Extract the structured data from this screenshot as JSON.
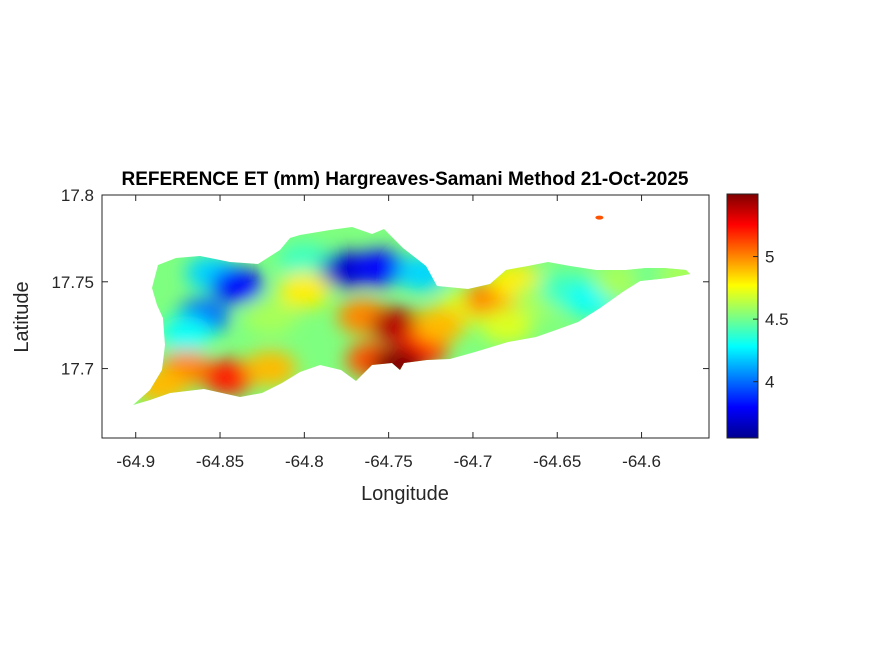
{
  "chart_data": {
    "type": "heatmap",
    "title": "REFERENCE ET (mm) Hargreaves-Samani Method  21-Oct-2025",
    "xlabel": "Longitude",
    "ylabel": "Latitude",
    "xlim": [
      -64.92,
      -64.56
    ],
    "ylim": [
      17.66,
      17.8
    ],
    "xticks": [
      -64.9,
      -64.85,
      -64.8,
      -64.75,
      -64.7,
      -64.65,
      -64.6
    ],
    "xtick_labels": [
      "-64.9",
      "-64.85",
      "-64.8",
      "-64.75",
      "-64.7",
      "-64.65",
      "-64.6"
    ],
    "yticks": [
      17.7,
      17.75,
      17.8
    ],
    "ytick_labels": [
      "17.7",
      "17.75",
      "17.8"
    ],
    "colorbar": {
      "colormap": "jet",
      "range": [
        3.55,
        5.5
      ],
      "ticks": [
        4,
        4.5,
        5
      ],
      "tick_labels": [
        "4",
        "4.5",
        "5"
      ]
    },
    "grid": false,
    "regions": [
      {
        "lon": -64.855,
        "lat": 17.755,
        "value": 4.2
      },
      {
        "lon": -64.84,
        "lat": 17.748,
        "value": 3.8
      },
      {
        "lon": -64.86,
        "lat": 17.73,
        "value": 4.0
      },
      {
        "lon": -64.87,
        "lat": 17.72,
        "value": 4.3
      },
      {
        "lon": -64.82,
        "lat": 17.73,
        "value": 4.6
      },
      {
        "lon": -64.8,
        "lat": 17.762,
        "value": 4.4
      },
      {
        "lon": -64.775,
        "lat": 17.757,
        "value": 3.7
      },
      {
        "lon": -64.755,
        "lat": 17.758,
        "value": 3.8
      },
      {
        "lon": -64.73,
        "lat": 17.755,
        "value": 4.2
      },
      {
        "lon": -64.8,
        "lat": 17.745,
        "value": 4.8
      },
      {
        "lon": -64.765,
        "lat": 17.73,
        "value": 5.0
      },
      {
        "lon": -64.745,
        "lat": 17.725,
        "value": 5.4
      },
      {
        "lon": -64.73,
        "lat": 17.712,
        "value": 5.2
      },
      {
        "lon": -64.87,
        "lat": 17.7,
        "value": 5.0
      },
      {
        "lon": -64.845,
        "lat": 17.695,
        "value": 5.2
      },
      {
        "lon": -64.82,
        "lat": 17.7,
        "value": 4.9
      },
      {
        "lon": -64.885,
        "lat": 17.69,
        "value": 4.9
      },
      {
        "lon": -64.76,
        "lat": 17.705,
        "value": 5.1
      },
      {
        "lon": -64.745,
        "lat": 17.702,
        "value": 5.5
      },
      {
        "lon": -64.705,
        "lat": 17.735,
        "value": 4.7
      },
      {
        "lon": -64.69,
        "lat": 17.74,
        "value": 5.0
      },
      {
        "lon": -64.675,
        "lat": 17.75,
        "value": 4.8
      },
      {
        "lon": -64.66,
        "lat": 17.74,
        "value": 4.6
      },
      {
        "lon": -64.645,
        "lat": 17.745,
        "value": 4.4
      },
      {
        "lon": -64.63,
        "lat": 17.74,
        "value": 4.3
      },
      {
        "lon": -64.612,
        "lat": 17.75,
        "value": 4.6
      },
      {
        "lon": -64.59,
        "lat": 17.753,
        "value": 4.5
      },
      {
        "lon": -64.575,
        "lat": 17.754,
        "value": 4.6
      },
      {
        "lon": -64.72,
        "lat": 17.725,
        "value": 4.9
      },
      {
        "lon": -64.68,
        "lat": 17.725,
        "value": 4.7
      },
      {
        "lon": -64.625,
        "lat": 17.787,
        "value": 5.1
      }
    ]
  }
}
